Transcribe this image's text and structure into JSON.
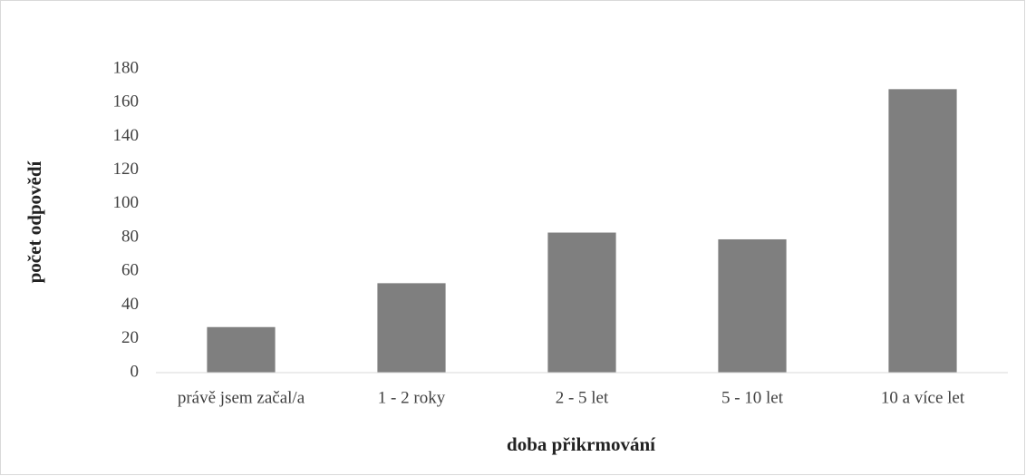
{
  "chart_data": {
    "type": "bar",
    "categories": [
      "právě jsem začal/a",
      "1 - 2 roky",
      "2 - 5 let",
      "5 - 10 let",
      "10 a více let"
    ],
    "values": [
      27,
      53,
      83,
      79,
      168
    ],
    "color": "#7f7f7f",
    "xlabel": "doba přikrmování",
    "ylabel": "počet odpovědí",
    "ylim": [
      0,
      180
    ],
    "yticks": [
      0,
      20,
      40,
      60,
      80,
      100,
      120,
      140,
      160,
      180
    ],
    "grid": false
  }
}
